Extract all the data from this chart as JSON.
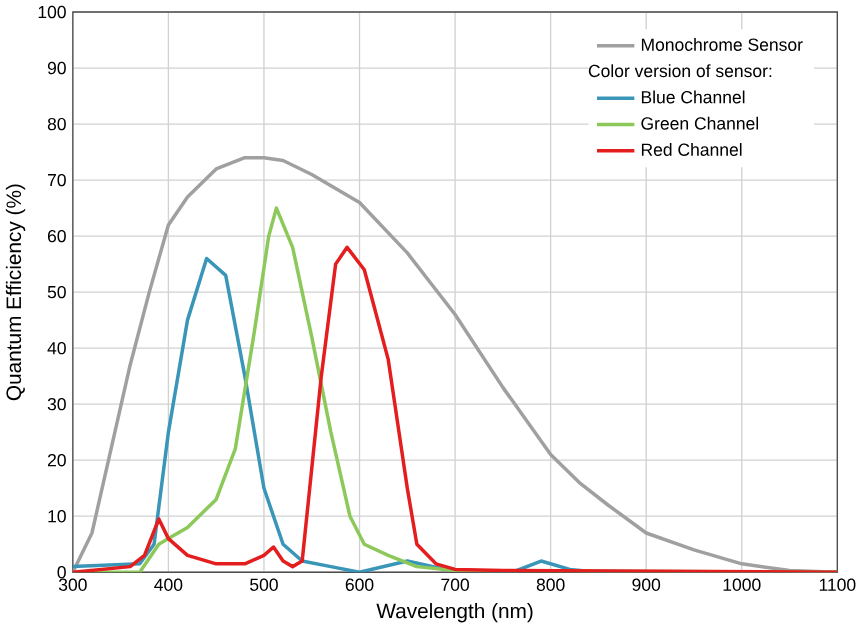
{
  "chart_data": {
    "type": "line",
    "xlabel": "Wavelength (nm)",
    "ylabel": "Quantum Efficiency (%)",
    "legend_title": "Color version of sensor:",
    "xlim": [
      300,
      1100
    ],
    "ylim": [
      0,
      100
    ],
    "xticks": [
      300,
      400,
      500,
      600,
      700,
      800,
      900,
      1000,
      1100
    ],
    "yticks": [
      0,
      10,
      20,
      30,
      40,
      50,
      60,
      70,
      80,
      90,
      100
    ],
    "grid": true,
    "legend": "top right",
    "marker": "none",
    "line_style": "solid",
    "series": [
      {
        "name": "Monochrome Sensor",
        "color": "#a0a0a0",
        "x": [
          300,
          320,
          340,
          360,
          380,
          400,
          420,
          450,
          480,
          500,
          520,
          550,
          600,
          650,
          700,
          750,
          800,
          830,
          860,
          900,
          950,
          1000,
          1050,
          1100
        ],
        "values": [
          0,
          7,
          22,
          37,
          50,
          62,
          67,
          72,
          74,
          74,
          73.5,
          71,
          66,
          57,
          46,
          33,
          21,
          16,
          12,
          7,
          4,
          1.5,
          0.3,
          0
        ]
      },
      {
        "name": "Blue Channel",
        "color": "#3a96b8",
        "x": [
          300,
          370,
          385,
          400,
          420,
          440,
          460,
          480,
          500,
          520,
          540,
          570,
          600,
          650,
          690,
          760,
          790,
          820,
          850,
          1100
        ],
        "values": [
          1,
          1.5,
          5,
          25,
          45,
          56,
          53,
          35,
          15,
          5,
          2,
          1,
          0,
          2,
          0.5,
          0,
          2,
          0.5,
          0,
          0
        ]
      },
      {
        "name": "Green Channel",
        "color": "#8cc85a",
        "x": [
          300,
          370,
          390,
          400,
          420,
          450,
          470,
          490,
          505,
          513,
          530,
          550,
          570,
          590,
          605,
          630,
          660,
          700,
          1100
        ],
        "values": [
          0,
          0,
          5,
          6,
          8,
          13,
          22,
          43,
          60,
          65,
          58,
          42,
          25,
          10,
          5,
          3,
          1,
          0.3,
          0
        ]
      },
      {
        "name": "Red Channel",
        "color": "#e41e1e",
        "x": [
          300,
          360,
          375,
          390,
          400,
          420,
          450,
          480,
          500,
          510,
          520,
          530,
          540,
          560,
          575,
          587,
          605,
          630,
          650,
          660,
          680,
          700,
          750,
          1100
        ],
        "values": [
          0,
          1,
          3,
          9.5,
          6,
          3,
          1.5,
          1.5,
          3,
          4.5,
          2,
          1,
          2,
          35,
          55,
          58,
          54,
          38,
          15,
          5,
          1.5,
          0.5,
          0.3,
          0
        ]
      }
    ]
  }
}
